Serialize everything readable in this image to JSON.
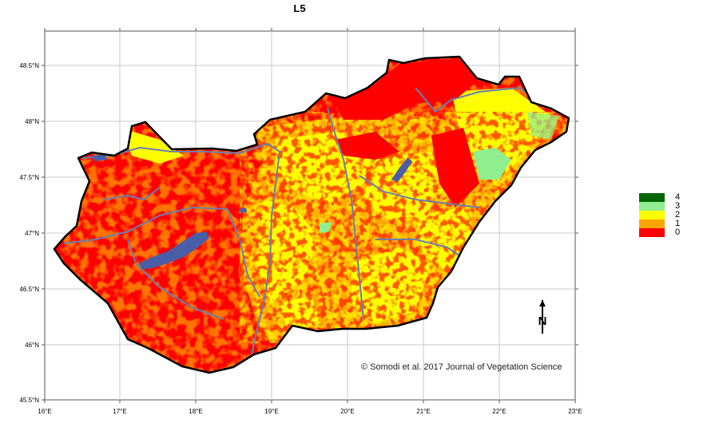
{
  "title": "L5",
  "axes": {
    "x_ticks": [
      "16°E",
      "17°E",
      "18°E",
      "19°E",
      "20°E",
      "21°E",
      "22°E",
      "23°E"
    ],
    "y_ticks": [
      "48.5°N",
      "48°N",
      "47.5°N",
      "47°N",
      "46.5°N",
      "46°N",
      "45.5°N"
    ],
    "xlim": [
      16,
      23
    ],
    "ylim": [
      45.5,
      48.8
    ]
  },
  "legend": [
    {
      "label": "4",
      "color": "#006400"
    },
    {
      "label": "3",
      "color": "#90EE90"
    },
    {
      "label": "2",
      "color": "#FFFF00"
    },
    {
      "label": "1",
      "color": "#FFA500"
    },
    {
      "label": "0",
      "color": "#FF0000"
    }
  ],
  "credit": "© Somodi et al. 2017 Journal of Vegetation Science",
  "north_arrow": "N",
  "colors": {
    "water": "#4a5ea8",
    "river": "#6a7fb0",
    "grid": "#c8c8c8",
    "border": "#000000"
  }
}
